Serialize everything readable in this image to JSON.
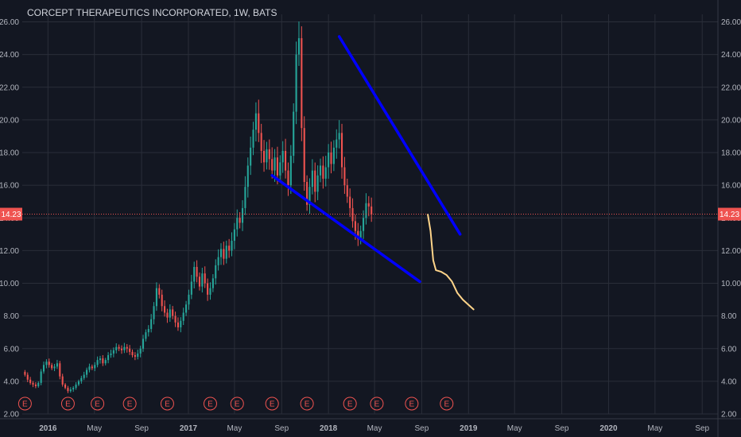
{
  "chart_data": {
    "type": "candlestick",
    "title": "CORCEPT THERAPEUTICS INCORPORATED, 1W, BATS",
    "ylim": [
      2,
      26
    ],
    "y_ticks": [
      "2.00",
      "4.00",
      "6.00",
      "8.00",
      "10.00",
      "12.00",
      "14.00",
      "16.00",
      "18.00",
      "20.00",
      "22.00",
      "24.00",
      "26.00"
    ],
    "x_ticks": [
      {
        "label": "2016",
        "year": true,
        "date": "2016-01-01"
      },
      {
        "label": "May",
        "year": false,
        "date": "2016-05-01"
      },
      {
        "label": "Sep",
        "year": false,
        "date": "2016-09-01"
      },
      {
        "label": "2017",
        "year": true,
        "date": "2017-01-01"
      },
      {
        "label": "May",
        "year": false,
        "date": "2017-05-01"
      },
      {
        "label": "Sep",
        "year": false,
        "date": "2017-09-01"
      },
      {
        "label": "2018",
        "year": true,
        "date": "2018-01-01"
      },
      {
        "label": "May",
        "year": false,
        "date": "2018-05-01"
      },
      {
        "label": "Sep",
        "year": false,
        "date": "2018-09-01"
      },
      {
        "label": "2019",
        "year": true,
        "date": "2019-01-01"
      },
      {
        "label": "May",
        "year": false,
        "date": "2019-05-01"
      },
      {
        "label": "Sep",
        "year": false,
        "date": "2019-09-01"
      },
      {
        "label": "2020",
        "year": true,
        "date": "2020-01-01"
      },
      {
        "label": "May",
        "year": false,
        "date": "2020-05-01"
      },
      {
        "label": "Sep",
        "year": false,
        "date": "2020-09-01"
      }
    ],
    "x_range": [
      "2015-10-26",
      "2020-10-12"
    ],
    "current_price": "14.23",
    "current_price_value": 14.23,
    "candles_start": "2015-11-02",
    "candle_interval_days": 7,
    "closes": [
      4.4,
      4.1,
      3.9,
      3.8,
      3.7,
      3.9,
      4.6,
      5.0,
      5.2,
      5.0,
      4.8,
      4.9,
      5.1,
      4.3,
      3.8,
      3.6,
      3.4,
      3.5,
      3.6,
      3.8,
      4.0,
      4.2,
      4.4,
      4.7,
      4.9,
      4.8,
      5.0,
      5.3,
      5.4,
      5.1,
      5.3,
      5.6,
      5.7,
      5.9,
      6.1,
      6.0,
      5.9,
      6.1,
      6.0,
      5.8,
      5.6,
      5.5,
      5.7,
      6.0,
      6.6,
      7.0,
      7.2,
      7.8,
      8.6,
      9.7,
      9.3,
      8.6,
      8.2,
      7.9,
      8.4,
      8.0,
      7.6,
      7.3,
      7.7,
      8.2,
      8.7,
      9.3,
      10.1,
      11.0,
      10.4,
      9.8,
      10.6,
      10.0,
      9.3,
      9.7,
      10.3,
      11.1,
      11.6,
      12.1,
      11.5,
      12.3,
      12.0,
      12.6,
      13.3,
      14.0,
      13.7,
      14.6,
      15.9,
      17.2,
      18.3,
      19.4,
      20.4,
      19.2,
      18.1,
      17.4,
      18.2,
      17.6,
      16.9,
      17.7,
      16.6,
      17.4,
      18.1,
      16.9,
      16.0,
      17.8,
      20.5,
      24.0,
      25.0,
      19.5,
      16.2,
      14.8,
      15.9,
      16.9,
      15.6,
      16.6,
      17.2,
      16.4,
      17.1,
      18.0,
      17.3,
      18.3,
      18.8,
      19.2,
      17.1,
      16.0,
      15.3,
      14.6,
      13.8,
      13.2,
      12.7,
      13.2,
      14.0,
      14.9,
      14.7,
      14.23
    ],
    "earnings_dates": [
      "2015-11-02",
      "2016-02-22",
      "2016-05-09",
      "2016-08-01",
      "2016-11-07",
      "2017-02-27",
      "2017-05-08",
      "2017-08-07",
      "2017-11-06",
      "2018-02-26",
      "2018-05-07",
      "2018-08-06",
      "2018-11-05"
    ],
    "earnings_label": "E",
    "trendlines": [
      {
        "name": "upper",
        "color": "#0000ff",
        "points": [
          [
            "2018-01-29",
            25.1
          ],
          [
            "2018-12-10",
            13.0
          ]
        ]
      },
      {
        "name": "lower",
        "color": "#0000ff",
        "points": [
          [
            "2017-08-07",
            16.6
          ],
          [
            "2018-08-27",
            10.1
          ]
        ]
      }
    ],
    "projection": {
      "color": "#ffd58a",
      "points": [
        [
          "2018-09-17",
          14.2
        ],
        [
          "2018-09-24",
          13.2
        ],
        [
          "2018-10-01",
          11.4
        ],
        [
          "2018-10-08",
          10.8
        ],
        [
          "2018-10-22",
          10.7
        ],
        [
          "2018-11-05",
          10.5
        ],
        [
          "2018-11-19",
          10.1
        ],
        [
          "2018-12-03",
          9.4
        ],
        [
          "2018-12-17",
          9.0
        ],
        [
          "2018-12-31",
          8.7
        ],
        [
          "2019-01-14",
          8.4
        ]
      ]
    },
    "colors": {
      "background": "#131722",
      "grid": "#2a2e39",
      "up": "#26a69a",
      "down": "#ef5350",
      "price_line": "#ef5350",
      "text": "#b2b5be"
    }
  }
}
